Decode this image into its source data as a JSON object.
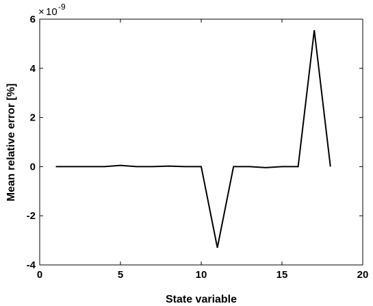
{
  "chart_data": {
    "type": "line",
    "title": "",
    "xlabel": "State variable",
    "ylabel": "Mean relative error [%]",
    "xlim": [
      0,
      20
    ],
    "ylim": [
      -4,
      6
    ],
    "xticks": [
      0,
      5,
      10,
      15,
      20
    ],
    "yticks": [
      -4,
      -2,
      0,
      2,
      4,
      6
    ],
    "y_multiplier": {
      "base": "10",
      "exponent": "-9"
    },
    "grid": false,
    "legend": "none",
    "series": [
      {
        "color": "#000000",
        "x": [
          1,
          2,
          3,
          4,
          5,
          6,
          7,
          8,
          9,
          10,
          11,
          12,
          13,
          14,
          15,
          16,
          17,
          18
        ],
        "y": [
          0,
          0,
          0,
          0,
          0.05,
          0,
          0,
          0.02,
          0,
          0,
          -3.3,
          0,
          0,
          -0.04,
          0,
          0,
          5.55,
          0
        ]
      }
    ]
  }
}
